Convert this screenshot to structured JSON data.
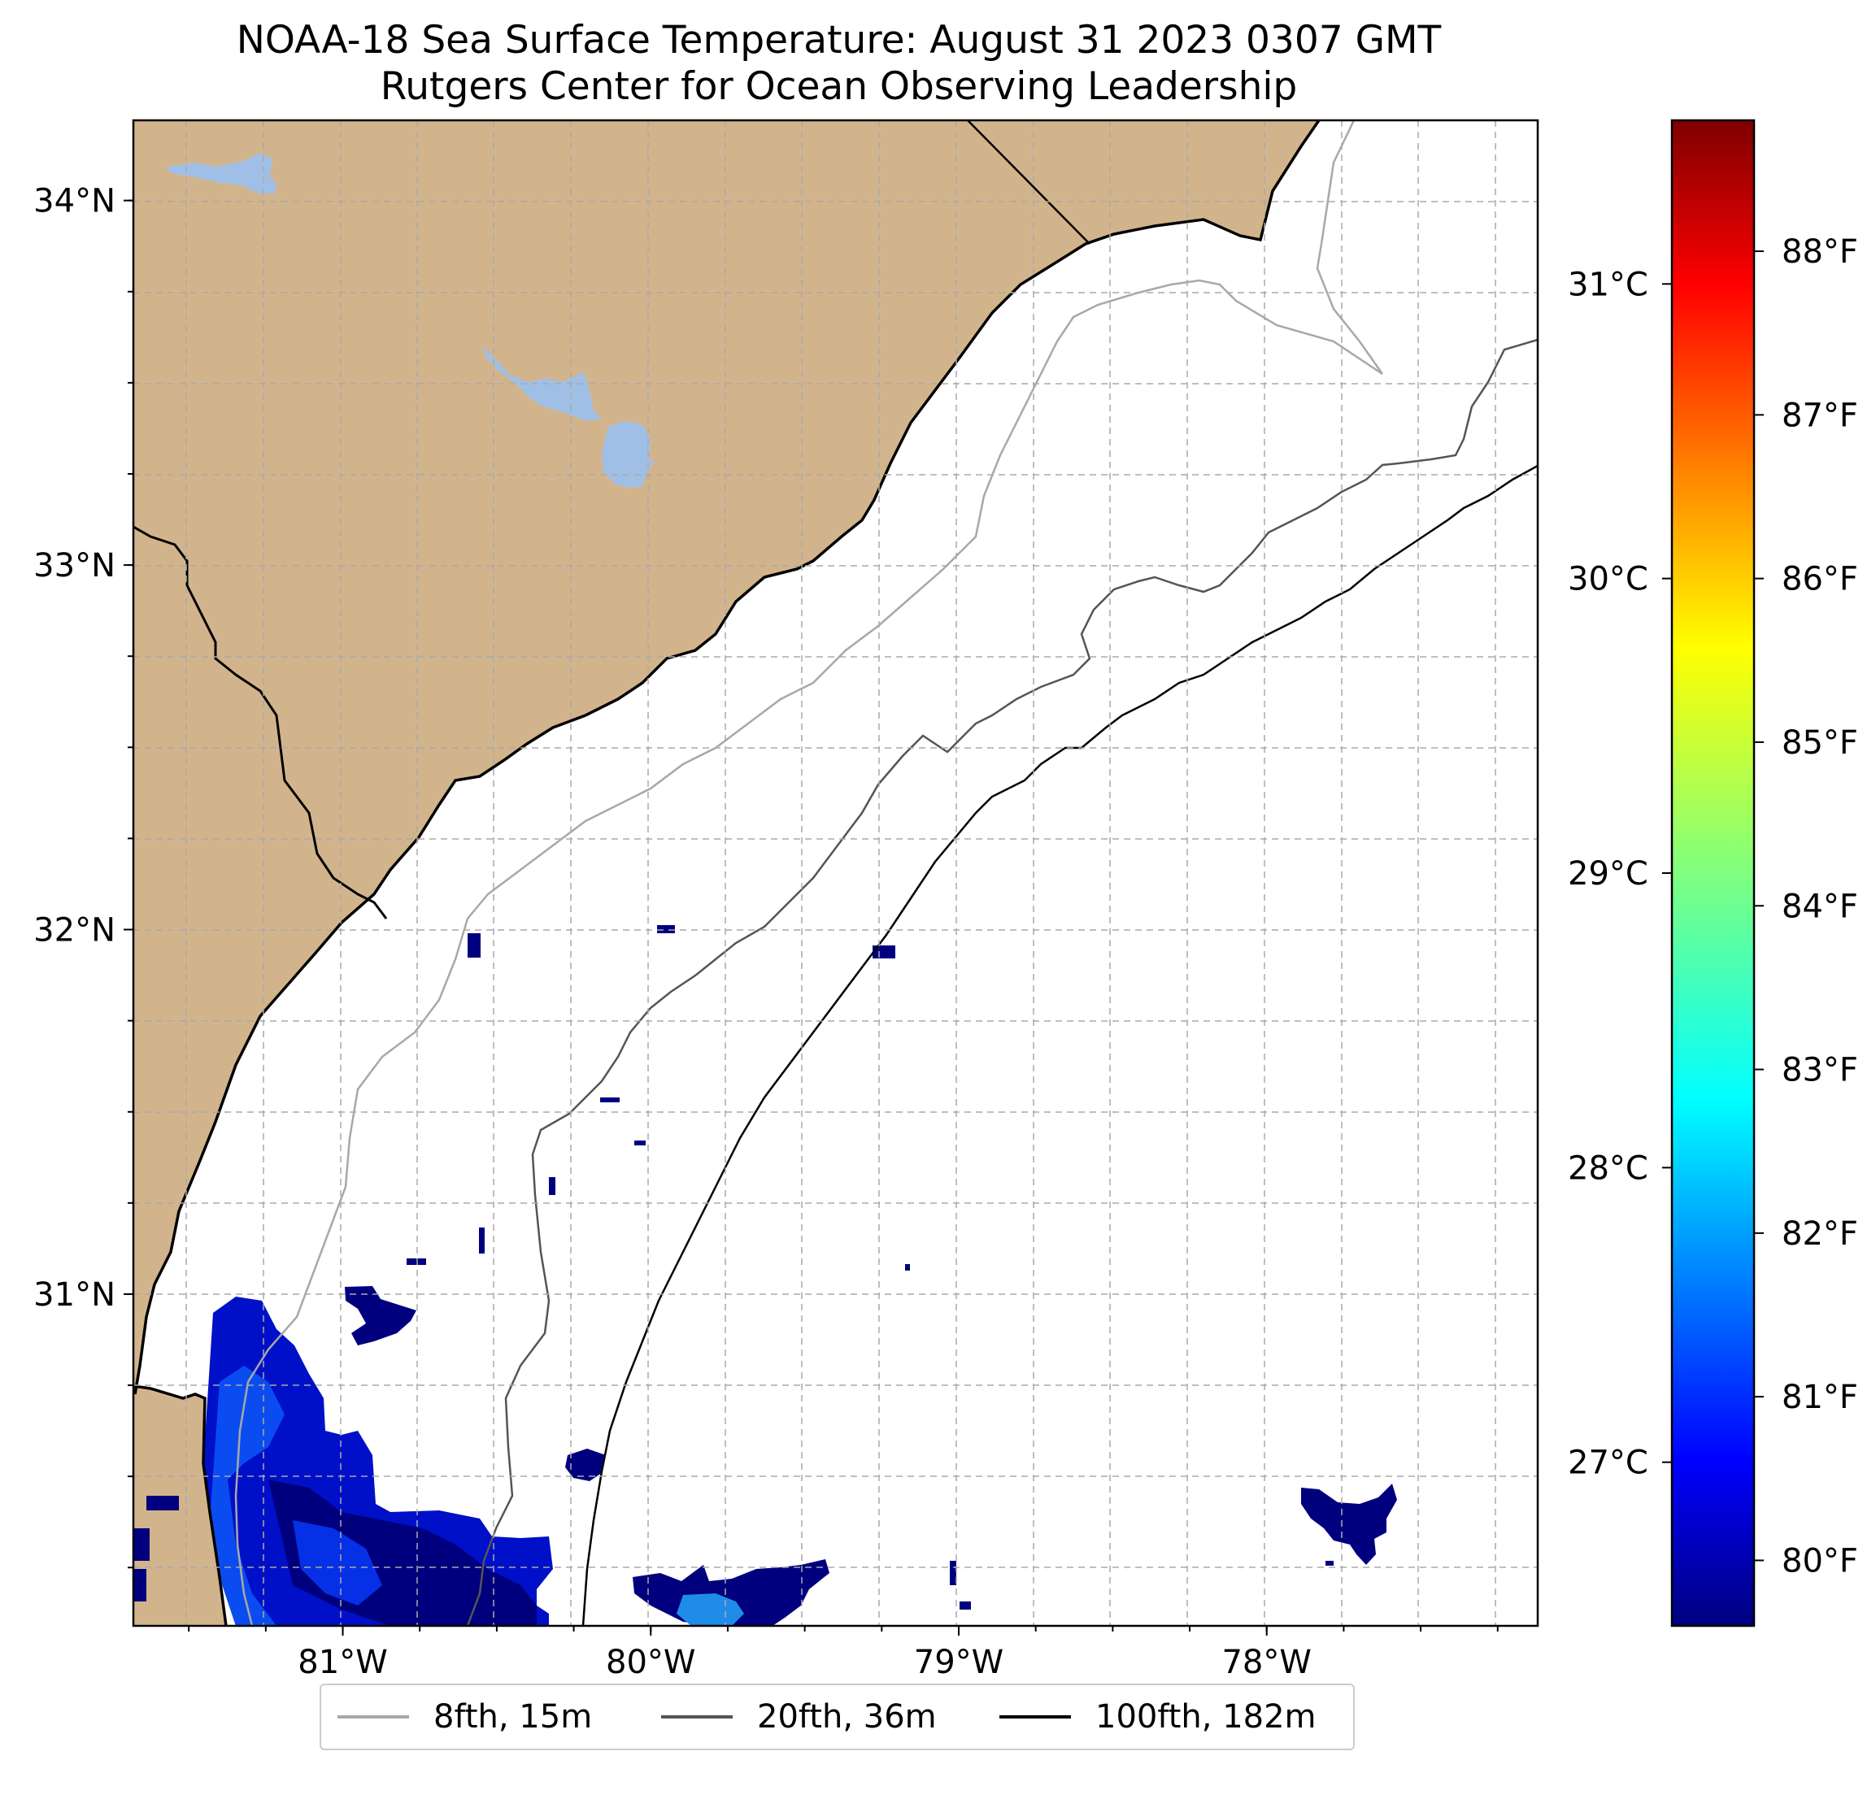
{
  "title": "NOAA-18 Sea Surface Temperature: August 31 2023 0307 GMT",
  "subtitle": "Rutgers Center for Ocean Observing Leadership",
  "map": {
    "extent": {
      "lon": [
        -81.68,
        -77.12
      ],
      "lat": [
        30.09,
        34.22
      ]
    },
    "lon_ticks": [
      {
        "value": -81,
        "label": "81°W"
      },
      {
        "value": -80,
        "label": "80°W"
      },
      {
        "value": -79,
        "label": "79°W"
      },
      {
        "value": -78,
        "label": "78°W"
      }
    ],
    "lat_ticks": [
      {
        "value": 34,
        "label": "34°N"
      },
      {
        "value": 33,
        "label": "33°N"
      },
      {
        "value": 32,
        "label": "32°N"
      },
      {
        "value": 31,
        "label": "31°N"
      }
    ],
    "gridlines": true,
    "colors": {
      "land": "#d2b48c",
      "water": "#ffffff",
      "lake": "#a0bfe6",
      "coast": "#000000"
    }
  },
  "colorbar": {
    "colormap": "jet",
    "celsius": [
      {
        "value": 31,
        "label": "31°C"
      },
      {
        "value": 30,
        "label": "30°C"
      },
      {
        "value": 29,
        "label": "29°C"
      },
      {
        "value": 28,
        "label": "28°C"
      },
      {
        "value": 27,
        "label": "27°C"
      }
    ],
    "fahrenheit": [
      {
        "value": 88,
        "label": "88°F"
      },
      {
        "value": 87,
        "label": "87°F"
      },
      {
        "value": 86,
        "label": "86°F"
      },
      {
        "value": 85,
        "label": "85°F"
      },
      {
        "value": 84,
        "label": "84°F"
      },
      {
        "value": 83,
        "label": "83°F"
      },
      {
        "value": 82,
        "label": "82°F"
      },
      {
        "value": 81,
        "label": "81°F"
      },
      {
        "value": 80,
        "label": "80°F"
      }
    ],
    "range_f": [
      79.6,
      88.8
    ]
  },
  "legend": [
    {
      "label": "8fth, 15m",
      "color": "#a8a8a8"
    },
    {
      "label": "20fth, 36m",
      "color": "#555555"
    },
    {
      "label": "100fth, 182m",
      "color": "#000000"
    }
  ]
}
